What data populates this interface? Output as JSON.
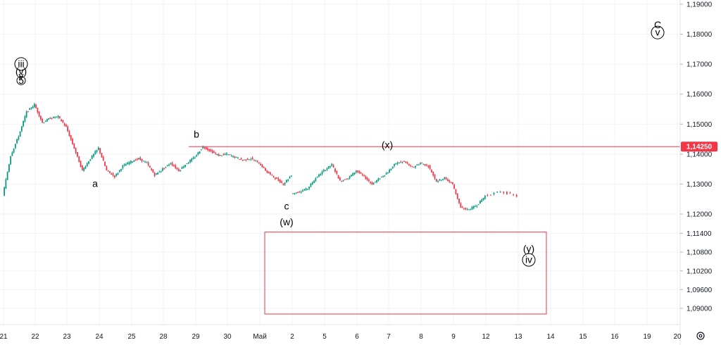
{
  "chart_data": {
    "type": "candlestick",
    "symbol_hint": "",
    "x_tick_labels": [
      "21",
      "22",
      "23",
      "24",
      "25",
      "28",
      "29",
      "30",
      "Май",
      "2",
      "5",
      "6",
      "7",
      "8",
      "9",
      "12",
      "13",
      "14",
      "15",
      "16",
      "19",
      "20"
    ],
    "y_tick_labels": [
      "1,19000",
      "1,18000",
      "1,17000",
      "1,16000",
      "1,15000",
      "1,14000",
      "1,13000",
      "1,12000",
      "1,11400",
      "1,10800",
      "1,10200",
      "1,09600",
      "1,09000"
    ],
    "price_line": {
      "value": 1.1425,
      "label": "1,14250",
      "color": "#f23645"
    },
    "target_box": {
      "x_from": "Май",
      "x_to": "14",
      "y_from": 1.1144,
      "y_to": 1.0882,
      "color": "#f23645"
    },
    "close_series": [
      {
        "x": "21",
        "y": 1.1395
      },
      {
        "x": "21",
        "y": 1.146
      },
      {
        "x": "21",
        "y": 1.154
      },
      {
        "x": "21",
        "y": 1.1565
      },
      {
        "x": "22",
        "y": 1.1505
      },
      {
        "x": "22",
        "y": 1.152
      },
      {
        "x": "22",
        "y": 1.1525
      },
      {
        "x": "22",
        "y": 1.149
      },
      {
        "x": "23",
        "y": 1.142
      },
      {
        "x": "23",
        "y": 1.1345
      },
      {
        "x": "23",
        "y": 1.1385
      },
      {
        "x": "23",
        "y": 1.142
      },
      {
        "x": "24",
        "y": 1.1345
      },
      {
        "x": "24",
        "y": 1.1325
      },
      {
        "x": "24",
        "y": 1.136
      },
      {
        "x": "24",
        "y": 1.1375
      },
      {
        "x": "25",
        "y": 1.1385
      },
      {
        "x": "25",
        "y": 1.137
      },
      {
        "x": "25",
        "y": 1.133
      },
      {
        "x": "25",
        "y": 1.135
      },
      {
        "x": "28",
        "y": 1.137
      },
      {
        "x": "28",
        "y": 1.1345
      },
      {
        "x": "28",
        "y": 1.137
      },
      {
        "x": "28",
        "y": 1.139
      },
      {
        "x": "29",
        "y": 1.1425
      },
      {
        "x": "29",
        "y": 1.141
      },
      {
        "x": "29",
        "y": 1.1395
      },
      {
        "x": "29",
        "y": 1.14
      },
      {
        "x": "30",
        "y": 1.139
      },
      {
        "x": "30",
        "y": 1.138
      },
      {
        "x": "30",
        "y": 1.1385
      },
      {
        "x": "30",
        "y": 1.137
      },
      {
        "x": "Май",
        "y": 1.134
      },
      {
        "x": "Май",
        "y": 1.132
      },
      {
        "x": "Май",
        "y": 1.13
      },
      {
        "x": "Май",
        "y": 1.133
      },
      {
        "x": "2",
        "y": 1.1275
      },
      {
        "x": "2",
        "y": 1.1285
      },
      {
        "x": "2",
        "y": 1.132
      },
      {
        "x": "2",
        "y": 1.1345
      },
      {
        "x": "5",
        "y": 1.1365
      },
      {
        "x": "5",
        "y": 1.131
      },
      {
        "x": "5",
        "y": 1.132
      },
      {
        "x": "5",
        "y": 1.1345
      },
      {
        "x": "6",
        "y": 1.1325
      },
      {
        "x": "6",
        "y": 1.13
      },
      {
        "x": "6",
        "y": 1.132
      },
      {
        "x": "6",
        "y": 1.134
      },
      {
        "x": "7",
        "y": 1.137
      },
      {
        "x": "7",
        "y": 1.1375
      },
      {
        "x": "7",
        "y": 1.1355
      },
      {
        "x": "7",
        "y": 1.137
      },
      {
        "x": "8",
        "y": 1.136
      },
      {
        "x": "8",
        "y": 1.131
      },
      {
        "x": "8",
        "y": 1.132
      },
      {
        "x": "8",
        "y": 1.13
      },
      {
        "x": "9",
        "y": 1.122
      },
      {
        "x": "9",
        "y": 1.1215
      },
      {
        "x": "9",
        "y": 1.123
      },
      {
        "x": "9",
        "y": 1.126
      },
      {
        "x": "12",
        "y": 1.1275
      },
      {
        "x": "12",
        "y": 1.126
      }
    ],
    "annotations": [
      {
        "text": "iii",
        "circled": true,
        "x": "21",
        "y": 1.169
      },
      {
        "text": "(v)",
        "circled": false,
        "x": "21",
        "y": 1.1665
      },
      {
        "text": "v",
        "circled": false,
        "x": "21",
        "y": 1.165
      },
      {
        "text": "5",
        "circled": true,
        "x": "21",
        "y": 1.1635
      },
      {
        "text": "a",
        "circled": false,
        "x": "24",
        "y": 1.129
      },
      {
        "text": "b",
        "circled": false,
        "x": "29",
        "y": 1.1455
      },
      {
        "text": "c",
        "circled": false,
        "x": "2",
        "y": 1.1215
      },
      {
        "text": "(w)",
        "circled": false,
        "x": "2",
        "y": 1.1165
      },
      {
        "text": "(x)",
        "circled": false,
        "x": "7",
        "y": 1.142
      },
      {
        "text": "(y)",
        "circled": false,
        "x": "14",
        "y": 1.108
      },
      {
        "text": "iv",
        "circled": true,
        "x": "14",
        "y": 1.1045
      },
      {
        "text": "C",
        "circled": false,
        "x": "19",
        "y": 1.182
      },
      {
        "text": "v",
        "circled": true,
        "x": "19",
        "y": 1.1795
      }
    ],
    "grid": true,
    "colors": {
      "up": "#089981",
      "down": "#f23645",
      "grid": "#f0f3fa",
      "price_line": "#f23645"
    },
    "axis_extra_icon": "settings-gear-icon"
  }
}
